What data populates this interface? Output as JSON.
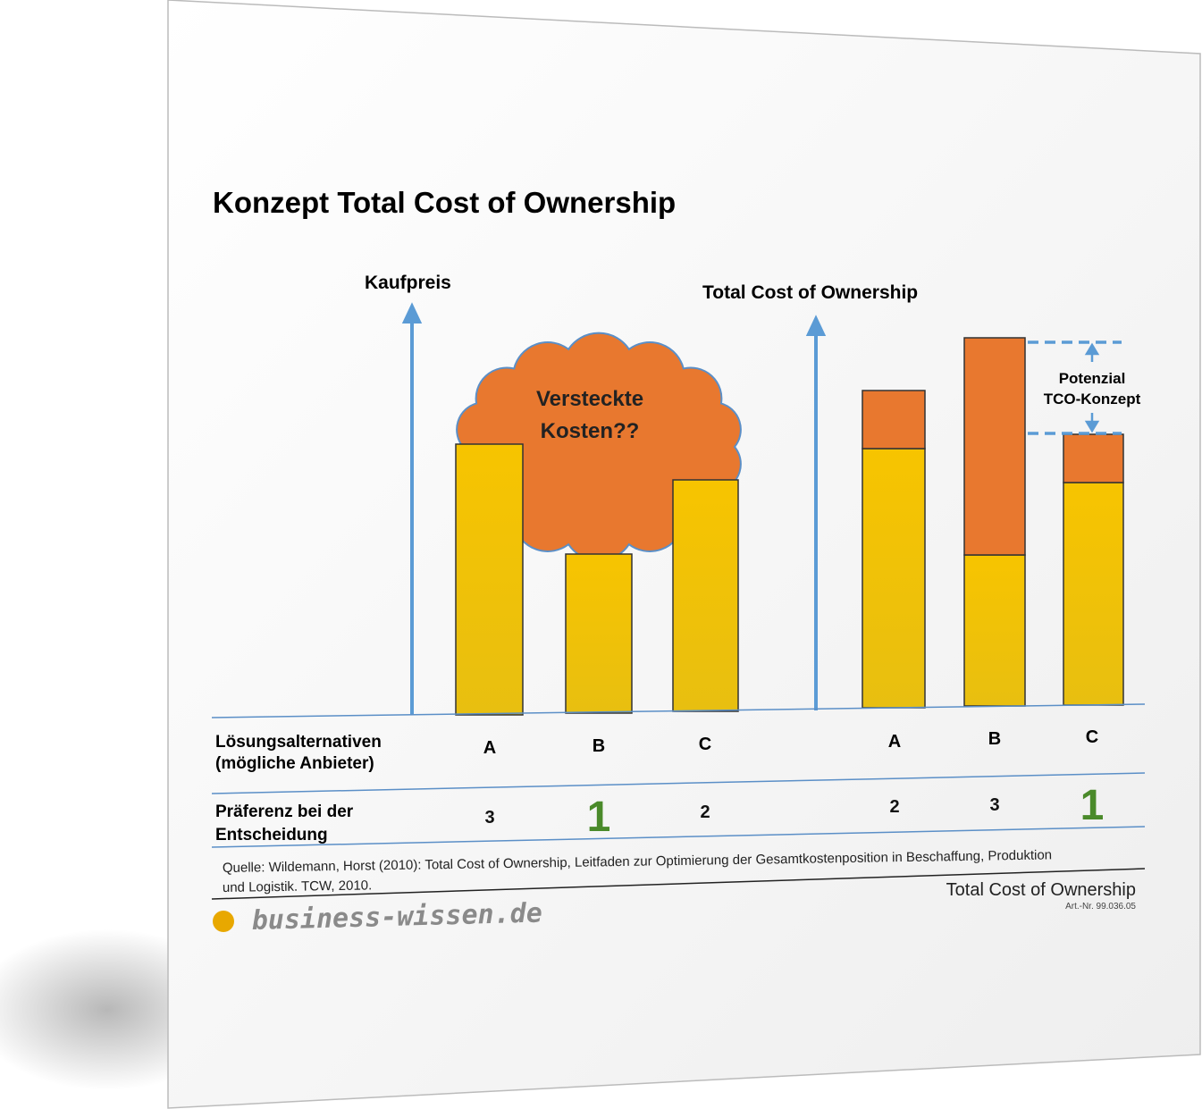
{
  "title": "Konzept Total Cost of Ownership",
  "left_panel": {
    "axis_label": "Kaufpreis",
    "cloud_label": [
      "Versteckte",
      "Kosten??"
    ],
    "categories": [
      "A",
      "B",
      "C"
    ],
    "preferences": [
      3,
      1,
      2
    ]
  },
  "right_panel": {
    "axis_label": "Total Cost of Ownership",
    "annotation": [
      "Potenzial",
      "TCO-Konzept"
    ],
    "categories": [
      "A",
      "B",
      "C"
    ],
    "preferences": [
      2,
      3,
      1
    ]
  },
  "row_labels": [
    [
      "Lösungsalternativen",
      "(mögliche Anbieter)"
    ],
    [
      "Präferenz bei der",
      "Entscheidung"
    ]
  ],
  "source": [
    "Quelle: Wildemann, Horst (2010): Total Cost of Ownership, Leitfaden zur Optimierung der Gesamtkostenposition in Beschaffung, Produktion",
    "und Logistik. TCW, 2010."
  ],
  "footer": {
    "title": "Total Cost of Ownership",
    "article_number": "Art.-Nr. 99.036.05",
    "logo": "business-wissen.de"
  }
}
